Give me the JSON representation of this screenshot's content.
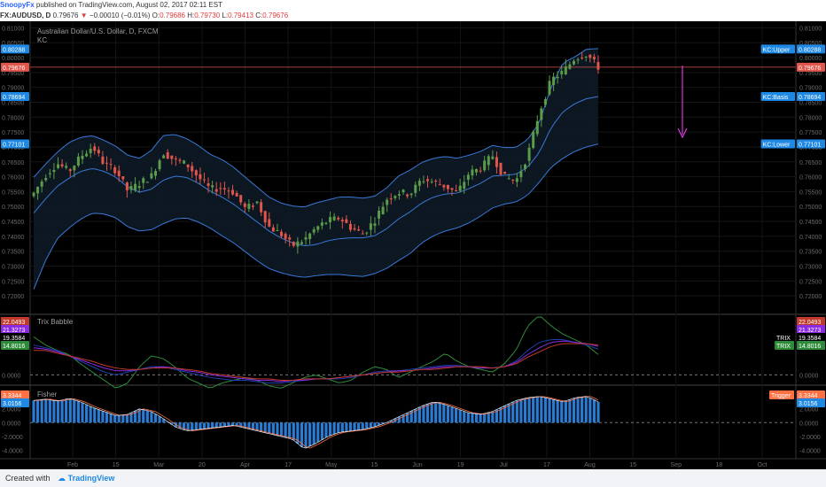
{
  "header": {
    "author": "SnoopyFx",
    "published_text": "published on TradingView.com, August 02, 2017 02:11 EST",
    "symbol": "FX:AUDUSD, D",
    "last": "0.79676",
    "change": "−0.00010 (−0.01%)",
    "o_label": "O:",
    "o": "0.79686",
    "h_label": "H:",
    "h": "0.79730",
    "l_label": "L:",
    "l": "0.79413",
    "c_label": "C:",
    "c": "0.79676"
  },
  "footer": {
    "created_with": "Created with",
    "brand": "TradingView"
  },
  "colors": {
    "up": "#5b9c4a",
    "down": "#e2554a",
    "band": "#3a78d6",
    "price_line": "#e2554a",
    "trix": "#ffffff",
    "trix_green": "#2e8b3a",
    "trix_purple": "#8a2be2",
    "trix_red": "#c0392b",
    "trix_blue": "#1e3fae",
    "fisher_hist": "#2a7bd1",
    "fisher_trigger": "#ff7043",
    "arrow": "#d63ad8"
  },
  "chart_data": [
    {
      "type": "candlestick",
      "title": "Australian Dollar/U.S. Dollar, D, FXCM",
      "indicator": "KC",
      "ylim": [
        0.715,
        0.811
      ],
      "y_ticks": [
        "0.81000",
        "0.80500",
        "0.80000",
        "0.79500",
        "0.79000",
        "0.78500",
        "0.78000",
        "0.77500",
        "0.77000",
        "0.76500",
        "0.76000",
        "0.75500",
        "0.75000",
        "0.74500",
        "0.74000",
        "0.73500",
        "0.73000",
        "0.72500",
        "0.72000"
      ],
      "x_ticks": [
        "Feb",
        "15",
        "Mar",
        "20",
        "Apr",
        "17",
        "May",
        "15",
        "Jun",
        "19",
        "Jul",
        "17",
        "Aug",
        "15",
        "Sep",
        "18",
        "Oct"
      ],
      "labels_right": [
        {
          "name": "KC:Upper",
          "value": "0.80288",
          "color": "#1e88e5"
        },
        {
          "name": "",
          "value": "0.79676",
          "color": "#e2554a"
        },
        {
          "name": "KC:Basis",
          "value": "0.78694",
          "color": "#1e88e5"
        },
        {
          "name": "KC:Lower",
          "value": "0.77101",
          "color": "#1e88e5"
        }
      ],
      "labels_left": [
        {
          "value": "0.80288",
          "color": "#1e88e5"
        },
        {
          "value": "0.79676",
          "color": "#e2554a"
        },
        {
          "value": "0.78694",
          "color": "#1e88e5"
        },
        {
          "value": "0.77101",
          "color": "#1e88e5"
        }
      ],
      "keypoints": [
        0.7545,
        0.7605,
        0.7645,
        0.7618,
        0.7668,
        0.7702,
        0.7642,
        0.7622,
        0.7552,
        0.7578,
        0.7602,
        0.7682,
        0.7655,
        0.7642,
        0.7598,
        0.7558,
        0.7562,
        0.7548,
        0.7492,
        0.7515,
        0.7432,
        0.7408,
        0.7368,
        0.7388,
        0.7428,
        0.7452,
        0.7462,
        0.7428,
        0.7408,
        0.7455,
        0.7525,
        0.7548,
        0.7542,
        0.7592,
        0.7582,
        0.7568,
        0.7545,
        0.7612,
        0.7628,
        0.7672,
        0.7598,
        0.7585,
        0.7672,
        0.7818,
        0.7925,
        0.7952,
        0.7998,
        0.8012,
        0.7968
      ],
      "upper": [
        0.7598,
        0.7642,
        0.7682,
        0.7715,
        0.7732,
        0.7738,
        0.7722,
        0.7702,
        0.7672,
        0.7662,
        0.7688,
        0.7738,
        0.7742,
        0.7728,
        0.7705,
        0.7675,
        0.7658,
        0.7632,
        0.7598,
        0.7565,
        0.7532,
        0.7512,
        0.7502,
        0.7498,
        0.7512,
        0.7522,
        0.7532,
        0.7532,
        0.7528,
        0.7535,
        0.7562,
        0.7602,
        0.7622,
        0.7648,
        0.7662,
        0.7668,
        0.7662,
        0.7672,
        0.7685,
        0.7705,
        0.7698,
        0.7698,
        0.7725,
        0.7782,
        0.7902,
        0.7982,
        0.8002,
        0.8028,
        0.803
      ],
      "basis": [
        0.7478,
        0.7525,
        0.7568,
        0.7595,
        0.7618,
        0.7628,
        0.7618,
        0.7598,
        0.7565,
        0.7548,
        0.7558,
        0.7588,
        0.7602,
        0.7598,
        0.7578,
        0.7552,
        0.7532,
        0.7508,
        0.7478,
        0.7448,
        0.7418,
        0.7395,
        0.7378,
        0.7368,
        0.7372,
        0.7385,
        0.7392,
        0.7395,
        0.7395,
        0.7402,
        0.7425,
        0.7458,
        0.7482,
        0.7512,
        0.7532,
        0.7542,
        0.7545,
        0.756,
        0.7578,
        0.7602,
        0.7605,
        0.7608,
        0.7632,
        0.7682,
        0.7765,
        0.7818,
        0.7845,
        0.7862,
        0.7869
      ],
      "lower": [
        0.7222,
        0.7318,
        0.7392,
        0.7428,
        0.7458,
        0.7478,
        0.7475,
        0.7462,
        0.7432,
        0.7418,
        0.7422,
        0.7442,
        0.7458,
        0.7462,
        0.7448,
        0.7428,
        0.7402,
        0.7378,
        0.7348,
        0.7318,
        0.7292,
        0.7278,
        0.7268,
        0.7262,
        0.7268,
        0.7272,
        0.7272,
        0.7268,
        0.7265,
        0.7275,
        0.7292,
        0.7318,
        0.7342,
        0.7378,
        0.7402,
        0.7418,
        0.7428,
        0.7445,
        0.7468,
        0.7495,
        0.7508,
        0.7515,
        0.7538,
        0.7582,
        0.7632,
        0.7662,
        0.7685,
        0.77,
        0.771
      ]
    },
    {
      "type": "line",
      "title": "Trix Babble",
      "ylim": [
        -5,
        42
      ],
      "y_ticks": [
        "0.0000"
      ],
      "labels_left": [
        {
          "value": "22.0493",
          "color": "#c0392b"
        },
        {
          "value": "21.3273",
          "color": "#8a2be2"
        },
        {
          "value": "19.3584",
          "color": "#000000"
        },
        {
          "value": "14.8016",
          "color": "#2e8b3a"
        }
      ],
      "labels_right": [
        {
          "name": "",
          "value": "22.0493",
          "color": "#c0392b"
        },
        {
          "name": "",
          "value": "21.3273",
          "color": "#8a2be2"
        },
        {
          "name": "TRIX",
          "value": "19.3584",
          "color": "#000000"
        },
        {
          "name": "TRIX",
          "value": "14.8016",
          "color": "#2e8b3a"
        }
      ],
      "series": [
        {
          "name": "TRIX",
          "color": "#2e8b3a",
          "keypoints": [
            28,
            22,
            18,
            15,
            8,
            2,
            -4,
            -10,
            -6,
            6,
            14,
            12,
            6,
            -2,
            -6,
            -10,
            -6,
            -4,
            -2,
            -4,
            -8,
            -10,
            -6,
            -2,
            0,
            -3,
            -6,
            -4,
            2,
            6,
            4,
            -2,
            2,
            6,
            10,
            16,
            10,
            6,
            4,
            2,
            8,
            18,
            36,
            44,
            36,
            30,
            26,
            22,
            15
          ]
        },
        {
          "name": "",
          "color": "#1e3fae",
          "keypoints": [
            22,
            20,
            18,
            14,
            10,
            6,
            2,
            0,
            2,
            4,
            6,
            6,
            4,
            2,
            0,
            -2,
            -3,
            -4,
            -4,
            -5,
            -6,
            -6,
            -5,
            -4,
            -3,
            -3,
            -3,
            -2,
            0,
            2,
            3,
            3,
            4,
            5,
            6,
            7,
            7,
            6,
            5,
            5,
            6,
            10,
            18,
            24,
            26,
            26,
            24,
            22,
            19
          ]
        },
        {
          "name": "",
          "color": "#8a2be2",
          "keypoints": [
            20,
            19,
            17,
            14,
            11,
            8,
            5,
            3,
            3,
            4,
            5,
            6,
            5,
            3,
            2,
            0,
            -1,
            -2,
            -3,
            -4,
            -4,
            -5,
            -4,
            -4,
            -3,
            -3,
            -2,
            -1,
            0,
            1,
            2,
            3,
            3,
            4,
            5,
            6,
            6,
            6,
            5,
            5,
            6,
            9,
            15,
            20,
            24,
            25,
            24,
            23,
            21
          ]
        },
        {
          "name": "",
          "color": "#c0392b",
          "keypoints": [
            18,
            18,
            16,
            14,
            12,
            10,
            7,
            5,
            4,
            4,
            5,
            5,
            5,
            4,
            3,
            1,
            0,
            -1,
            -2,
            -3,
            -3,
            -4,
            -4,
            -3,
            -3,
            -3,
            -2,
            -1,
            0,
            1,
            2,
            2,
            3,
            4,
            4,
            5,
            6,
            6,
            6,
            5,
            6,
            8,
            13,
            17,
            21,
            23,
            23,
            23,
            22
          ]
        }
      ]
    },
    {
      "type": "bar",
      "title": "Fisher",
      "ylim": [
        -4.7,
        4.9
      ],
      "y_ticks": [
        "4.0000",
        "2.0000",
        "0.0000",
        "-2.0000",
        "-4.0000"
      ],
      "labels_left": [
        {
          "value": "3.3344",
          "color": "#ff7043"
        },
        {
          "value": "3.0156",
          "color": "#1e88e5"
        }
      ],
      "labels_right": [
        {
          "name": "Trigger",
          "value": "3.3344",
          "color": "#ff7043"
        },
        {
          "name": "",
          "value": "3.0156",
          "color": "#1e88e5"
        }
      ],
      "histogram_keypoints": [
        3.2,
        3.4,
        3.1,
        3.5,
        3.0,
        2.2,
        1.6,
        1.0,
        1.2,
        2.0,
        1.6,
        0.6,
        -0.6,
        -1.2,
        -1.0,
        -0.8,
        -0.6,
        -0.4,
        -0.8,
        -1.2,
        -1.6,
        -2.0,
        -2.4,
        -3.8,
        -3.0,
        -2.0,
        -1.4,
        -1.2,
        -1.0,
        -0.6,
        0.0,
        0.8,
        1.6,
        2.4,
        3.0,
        2.6,
        2.0,
        1.4,
        1.2,
        1.6,
        2.4,
        3.2,
        3.6,
        3.8,
        3.4,
        3.0,
        3.6,
        3.8,
        3.0
      ]
    }
  ]
}
